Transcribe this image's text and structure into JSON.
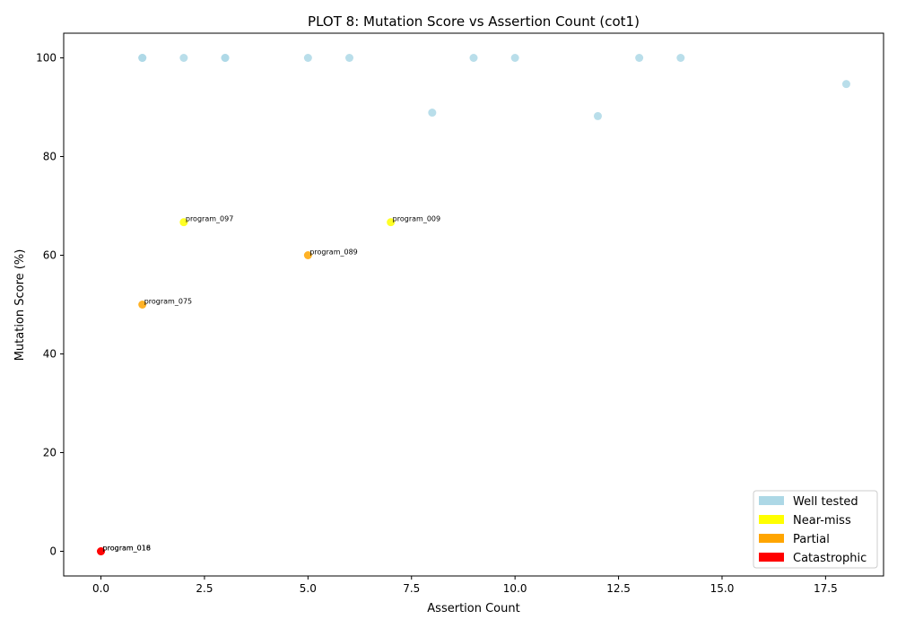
{
  "chart_data": {
    "type": "scatter",
    "title": "PLOT 8: Mutation Score vs Assertion Count (cot1)",
    "xlabel": "Assertion Count",
    "ylabel": "Mutation Score (%)",
    "xlim": [
      -0.9,
      18.9
    ],
    "ylim": [
      -5,
      105
    ],
    "x_ticks": [
      0.0,
      2.5,
      5.0,
      7.5,
      10.0,
      12.5,
      15.0,
      17.5
    ],
    "x_tick_labels": [
      "0.0",
      "2.5",
      "5.0",
      "7.5",
      "10.0",
      "12.5",
      "15.0",
      "17.5"
    ],
    "y_ticks": [
      0,
      20,
      40,
      60,
      80,
      100
    ],
    "y_tick_labels": [
      "0",
      "20",
      "40",
      "60",
      "80",
      "100"
    ],
    "grid": false,
    "legend_position": "lower-right",
    "categories": [
      {
        "key": "well",
        "name": "Well tested",
        "color": "#add8e6"
      },
      {
        "key": "near",
        "name": "Near-miss",
        "color": "#ffff00"
      },
      {
        "key": "partial",
        "name": "Partial",
        "color": "#ffa500"
      },
      {
        "key": "cat",
        "name": "Catastrophic",
        "color": "#ff0000"
      }
    ],
    "points": [
      {
        "x": 1,
        "y": 100,
        "category": "well"
      },
      {
        "x": 1,
        "y": 100,
        "category": "well"
      },
      {
        "x": 2,
        "y": 100,
        "category": "well"
      },
      {
        "x": 3,
        "y": 100,
        "category": "well"
      },
      {
        "x": 3,
        "y": 100,
        "category": "well"
      },
      {
        "x": 5,
        "y": 100,
        "category": "well"
      },
      {
        "x": 6,
        "y": 100,
        "category": "well"
      },
      {
        "x": 8,
        "y": 88.9,
        "category": "well"
      },
      {
        "x": 9,
        "y": 100,
        "category": "well"
      },
      {
        "x": 10,
        "y": 100,
        "category": "well"
      },
      {
        "x": 12,
        "y": 88.2,
        "category": "well"
      },
      {
        "x": 13,
        "y": 100,
        "category": "well"
      },
      {
        "x": 14,
        "y": 100,
        "category": "well"
      },
      {
        "x": 18,
        "y": 94.7,
        "category": "well"
      },
      {
        "x": 2,
        "y": 66.7,
        "category": "near",
        "label": "program_097"
      },
      {
        "x": 7,
        "y": 66.7,
        "category": "near",
        "label": "program_009"
      },
      {
        "x": 5,
        "y": 60,
        "category": "partial",
        "label": "program_089"
      },
      {
        "x": 1,
        "y": 50,
        "category": "partial",
        "label": "program_075"
      },
      {
        "x": 0,
        "y": 0,
        "category": "cat",
        "label": "program_018"
      },
      {
        "x": 0,
        "y": 0,
        "category": "cat",
        "label": "program_016"
      }
    ]
  }
}
